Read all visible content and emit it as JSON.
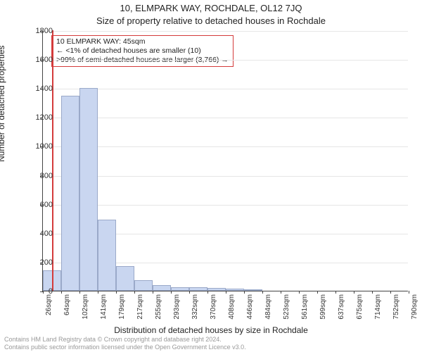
{
  "titles": {
    "line1": "10, ELMPARK WAY, ROCHDALE, OL12 7JQ",
    "line2": "Size of property relative to detached houses in Rochdale"
  },
  "ylabel": "Number of detached properties",
  "xlabel": "Distribution of detached houses by size in Rochdale",
  "chart": {
    "type": "histogram",
    "background_color": "#ffffff",
    "grid_color": "#e6e6e6",
    "axis_color": "#444444",
    "ylim": [
      0,
      1800
    ],
    "ytick_step": 200,
    "yticks": [
      0,
      200,
      400,
      600,
      800,
      1000,
      1200,
      1400,
      1600,
      1800
    ],
    "xlim_sqm": [
      26,
      790
    ],
    "xticks_sqm": [
      26,
      64,
      102,
      141,
      179,
      217,
      255,
      293,
      332,
      370,
      408,
      446,
      484,
      523,
      561,
      599,
      637,
      675,
      714,
      752,
      790
    ],
    "bar_fill": "#c9d6f0",
    "bar_stroke": "#9aa9c9",
    "bars": [
      {
        "x0": 26,
        "x1": 64,
        "count": 140
      },
      {
        "x0": 64,
        "x1": 102,
        "count": 1350
      },
      {
        "x0": 102,
        "x1": 141,
        "count": 1400
      },
      {
        "x0": 141,
        "x1": 179,
        "count": 490
      },
      {
        "x0": 179,
        "x1": 217,
        "count": 170
      },
      {
        "x0": 217,
        "x1": 255,
        "count": 75
      },
      {
        "x0": 255,
        "x1": 293,
        "count": 40
      },
      {
        "x0": 293,
        "x1": 332,
        "count": 25
      },
      {
        "x0": 332,
        "x1": 370,
        "count": 22
      },
      {
        "x0": 370,
        "x1": 408,
        "count": 18
      },
      {
        "x0": 408,
        "x1": 446,
        "count": 15
      },
      {
        "x0": 446,
        "x1": 484,
        "count": 10
      },
      {
        "x0": 484,
        "x1": 523,
        "count": 0
      },
      {
        "x0": 523,
        "x1": 561,
        "count": 0
      },
      {
        "x0": 561,
        "x1": 599,
        "count": 0
      },
      {
        "x0": 599,
        "x1": 637,
        "count": 0
      },
      {
        "x0": 637,
        "x1": 675,
        "count": 0
      },
      {
        "x0": 675,
        "x1": 714,
        "count": 0
      },
      {
        "x0": 714,
        "x1": 752,
        "count": 0
      },
      {
        "x0": 752,
        "x1": 790,
        "count": 0
      }
    ],
    "marker": {
      "x_sqm": 45,
      "color": "#d43b3b"
    },
    "annotation": {
      "border_color": "#d43b3b",
      "lines": [
        "10 ELMPARK WAY: 45sqm",
        "← <1% of detached houses are smaller (10)",
        ">99% of semi-detached houses are larger (3,766) →"
      ]
    }
  },
  "footer": {
    "line1": "Contains HM Land Registry data © Crown copyright and database right 2024.",
    "line2": "Contains public sector information licensed under the Open Government Licence v3.0."
  },
  "fonts": {
    "title_size": 13,
    "axis_label_size": 12,
    "tick_size": 11,
    "xtick_size": 10,
    "annotation_size": 10.5,
    "footer_size": 9
  }
}
